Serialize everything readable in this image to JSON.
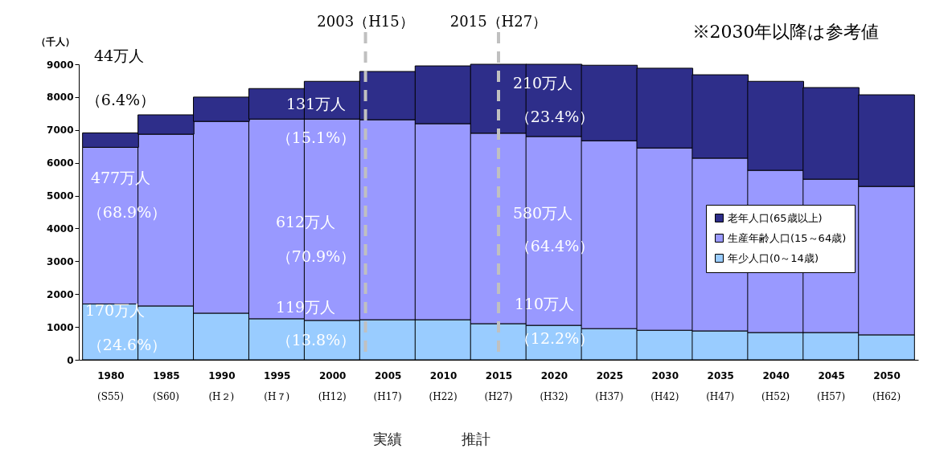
{
  "chart_data": {
    "type": "bar",
    "stacked": true,
    "ylabel": "（千人）",
    "x": [
      1980,
      1985,
      1990,
      1995,
      2000,
      2005,
      2010,
      2015,
      2020,
      2025,
      2030,
      2035,
      2040,
      2045,
      2050
    ],
    "xlim": [
      1977.5,
      2052.5
    ],
    "xticks": [
      1980,
      1985,
      1990,
      1995,
      2000,
      2005,
      2010,
      2015,
      2020,
      2025,
      2030,
      2035,
      2040,
      2045,
      2050
    ],
    "ylim": [
      0,
      9000
    ],
    "yticks": [
      0,
      1000,
      2000,
      3000,
      4000,
      5000,
      6000,
      7000,
      8000,
      9000
    ],
    "grid": false,
    "legend": "right",
    "series": [
      {
        "name": "年少人口(0～14歳)",
        "color": "#99ccff",
        "values": [
          1700,
          1640,
          1420,
          1250,
          1200,
          1220,
          1220,
          1100,
          1050,
          950,
          900,
          880,
          830,
          830,
          760
        ]
      },
      {
        "name": "生産年齢人口(15～64歳)",
        "color": "#9999ff",
        "values": [
          4770,
          5230,
          5840,
          6080,
          6130,
          6090,
          5970,
          5800,
          5750,
          5720,
          5550,
          5260,
          4940,
          4670,
          4520
        ]
      },
      {
        "name": "老年人口(65歳以上)",
        "color": "#2e2e8a",
        "values": [
          440,
          590,
          740,
          930,
          1150,
          1470,
          1760,
          2100,
          2200,
          2300,
          2430,
          2540,
          2710,
          2790,
          2790
        ]
      }
    ],
    "ref_lines": [
      {
        "axis": "x",
        "value": 2003,
        "label": "2003（H15）",
        "color": "#c0c0c0",
        "line_style": "dashed"
      },
      {
        "axis": "x",
        "value": 2015,
        "label": "2015（H27）",
        "color": "#c0c0c0",
        "line_style": "dashed"
      }
    ],
    "annotations": [
      "※2030年以降は参考値",
      "実績",
      "推計",
      "44万人",
      "（6.4%）",
      "477万人",
      "（68.9%）",
      "170万人",
      "（24.6%）",
      "131万人",
      "（15.1%）",
      "612万人",
      "（70.9%）",
      "119万人",
      "（13.8%）",
      "210万人",
      "（23.4%）",
      "580万人",
      "（64.4%）",
      "110万人",
      "（12.2%）",
      "(S55)",
      "(S60)",
      "(H２)",
      "(H７)",
      "(H12)",
      "(H17)",
      "(H22)",
      "(H27)",
      "(H32)",
      "(H37)",
      "(H42)",
      "(H47)",
      "(H52)",
      "(H57)",
      "(H62)"
    ]
  }
}
